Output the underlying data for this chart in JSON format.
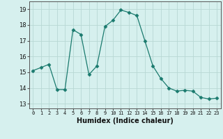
{
  "x": [
    0,
    1,
    2,
    3,
    4,
    5,
    6,
    7,
    8,
    9,
    10,
    11,
    12,
    13,
    14,
    15,
    16,
    17,
    18,
    19,
    20,
    21,
    22,
    23
  ],
  "y": [
    15.1,
    15.3,
    15.5,
    13.9,
    13.9,
    17.7,
    17.4,
    14.85,
    15.4,
    17.9,
    18.3,
    18.95,
    18.8,
    18.6,
    17.0,
    15.4,
    14.6,
    14.0,
    13.8,
    13.85,
    13.8,
    13.4,
    13.3,
    13.35
  ],
  "line_color": "#1a7a6e",
  "marker": "D",
  "marker_size": 2.5,
  "bg_color": "#d6f0ee",
  "grid_color": "#b8d8d4",
  "xlabel": "Humidex (Indice chaleur)",
  "ylabel_ticks": [
    13,
    14,
    15,
    16,
    17,
    18,
    19
  ],
  "xlim": [
    -0.5,
    23.5
  ],
  "ylim": [
    12.7,
    19.5
  ]
}
